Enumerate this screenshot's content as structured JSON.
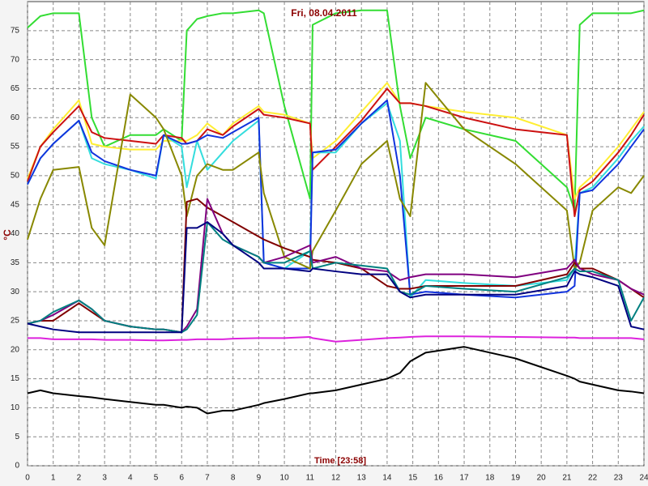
{
  "chart_data": {
    "type": "line",
    "title": "Fri, 08.04.2011",
    "x_label": "Time [23:58]",
    "y_label": "°C",
    "x": [
      0,
      0.5,
      1,
      2,
      2.5,
      3,
      4,
      5,
      5.3,
      6,
      6.2,
      6.6,
      7,
      7.6,
      8,
      9,
      9.2,
      10,
      11,
      11.1,
      12,
      13,
      14,
      14.5,
      14.9,
      15.5,
      17,
      19,
      21,
      21.3,
      21.5,
      22,
      23,
      23.5,
      24
    ],
    "series": [
      {
        "color": "#33dd33",
        "values": [
          75.5,
          77.5,
          78,
          78,
          60,
          55,
          57,
          57,
          58,
          56,
          75,
          77,
          77.5,
          78,
          78,
          78.5,
          78,
          62,
          46,
          76,
          78,
          78.5,
          78.5,
          62,
          53,
          60,
          58,
          56,
          48,
          44,
          76,
          78,
          78,
          78,
          78.5
        ]
      },
      {
        "color": "#ffee33",
        "values": [
          49.5,
          55,
          58,
          63,
          55.5,
          55,
          54.5,
          54.5,
          56,
          56,
          56,
          57,
          59,
          57,
          59,
          62,
          61,
          60.5,
          59,
          53,
          56,
          61,
          66,
          62.5,
          62.5,
          62,
          61,
          60,
          57,
          46,
          48,
          50,
          55,
          58,
          61
        ]
      },
      {
        "color": "#cc1111",
        "values": [
          49,
          55,
          57.5,
          62,
          57.5,
          56.5,
          56,
          55.5,
          57,
          56.5,
          55.5,
          56,
          58,
          57,
          58.5,
          61.5,
          60.5,
          60,
          59,
          51,
          55,
          59.5,
          65,
          62.5,
          62.5,
          62,
          60,
          58,
          57,
          43,
          47.5,
          49,
          54,
          57,
          60.5
        ]
      },
      {
        "color": "#33dddd",
        "values": [
          48.5,
          53,
          55.5,
          59.5,
          53,
          52,
          51,
          49.5,
          57,
          55,
          48,
          56,
          51,
          54,
          56,
          59.5,
          35,
          34,
          37,
          54,
          54,
          59,
          62.5,
          56,
          29,
          32,
          31.5,
          31,
          32,
          34,
          47,
          48,
          53,
          56,
          58.5
        ]
      },
      {
        "color": "#1133dd",
        "values": [
          48.5,
          53,
          55.5,
          59.5,
          54,
          52.5,
          51,
          50,
          57,
          55.5,
          55.5,
          56,
          57,
          56.5,
          57.5,
          60,
          35,
          34,
          34,
          54,
          54.5,
          59,
          63,
          50,
          29.5,
          30,
          29.5,
          29,
          30,
          31,
          47,
          47.5,
          52,
          55,
          58
        ]
      },
      {
        "color": "#888800",
        "values": [
          39,
          46,
          51,
          51.5,
          41,
          38,
          64,
          60,
          58,
          50,
          43,
          50,
          52,
          51,
          51,
          54,
          47,
          36,
          34,
          37,
          44,
          52,
          56,
          46,
          43,
          66,
          58,
          52,
          44,
          34,
          35,
          44,
          48,
          47,
          50
        ]
      },
      {
        "color": "#800000",
        "values": [
          24.5,
          25,
          25,
          28,
          26.5,
          25,
          24,
          23.5,
          23.5,
          23,
          45.5,
          46,
          44.5,
          43,
          42,
          39.5,
          39,
          37.5,
          36,
          35.5,
          35,
          34,
          31,
          30.5,
          30.5,
          31,
          31,
          31,
          33,
          35,
          34,
          34,
          32,
          30.5,
          29
        ]
      },
      {
        "color": "#800080",
        "values": [
          24.5,
          25,
          26,
          28.5,
          27,
          25,
          24,
          23.5,
          23.5,
          23,
          24,
          27,
          46,
          40,
          38,
          36,
          35,
          36,
          38,
          35,
          36,
          34,
          33.5,
          32,
          32.5,
          33,
          33,
          32.5,
          34,
          35.5,
          34,
          33,
          32,
          30.5,
          29.5
        ]
      },
      {
        "color": "#008080",
        "values": [
          24.5,
          25,
          26.5,
          28.5,
          27,
          25,
          24,
          23.5,
          23.5,
          23,
          23.5,
          26,
          42,
          39,
          38,
          36,
          35,
          35,
          37,
          34,
          35,
          34.5,
          34,
          30,
          29.5,
          31,
          30.5,
          30,
          32.5,
          34,
          33.5,
          33.5,
          32,
          25,
          29
        ]
      },
      {
        "color": "#000080",
        "values": [
          24.5,
          24,
          23.5,
          23,
          23,
          23,
          23,
          23,
          23,
          23,
          41,
          41,
          42,
          40,
          38,
          35,
          34,
          34,
          33.5,
          34,
          33.5,
          33,
          33,
          30,
          29,
          29.5,
          29.5,
          29.5,
          31,
          33.5,
          33,
          32.5,
          31,
          24,
          23.5
        ]
      },
      {
        "color": "#dd22dd",
        "values": [
          22,
          22,
          21.8,
          21.8,
          21.8,
          21.7,
          21.7,
          21.6,
          21.6,
          21.7,
          21.7,
          21.8,
          21.8,
          21.8,
          21.9,
          22,
          22,
          22,
          22.2,
          22,
          21.4,
          21.7,
          22,
          22.1,
          22.2,
          22.3,
          22.3,
          22.2,
          22.1,
          22.1,
          22,
          22,
          22,
          22,
          21.8
        ]
      },
      {
        "color": "#000000",
        "values": [
          12.5,
          13,
          12.5,
          12,
          11.8,
          11.5,
          11,
          10.5,
          10.5,
          10,
          10.2,
          10,
          9,
          9.5,
          9.5,
          10.5,
          10.8,
          11.5,
          12.5,
          12.5,
          13,
          14,
          15,
          16,
          18,
          19.5,
          20.5,
          18.5,
          15.5,
          15,
          14.5,
          14,
          13,
          12.8,
          12.5
        ]
      }
    ],
    "xlim": [
      0,
      24
    ],
    "ylim": [
      0,
      80
    ],
    "xticks": [
      0,
      1,
      2,
      3,
      4,
      5,
      6,
      7,
      8,
      9,
      10,
      11,
      12,
      13,
      14,
      15,
      16,
      17,
      18,
      19,
      20,
      21,
      22,
      23,
      24
    ],
    "yticks": [
      0,
      5,
      10,
      15,
      20,
      25,
      30,
      35,
      40,
      45,
      50,
      55,
      60,
      65,
      70,
      75
    ],
    "grid": true
  }
}
